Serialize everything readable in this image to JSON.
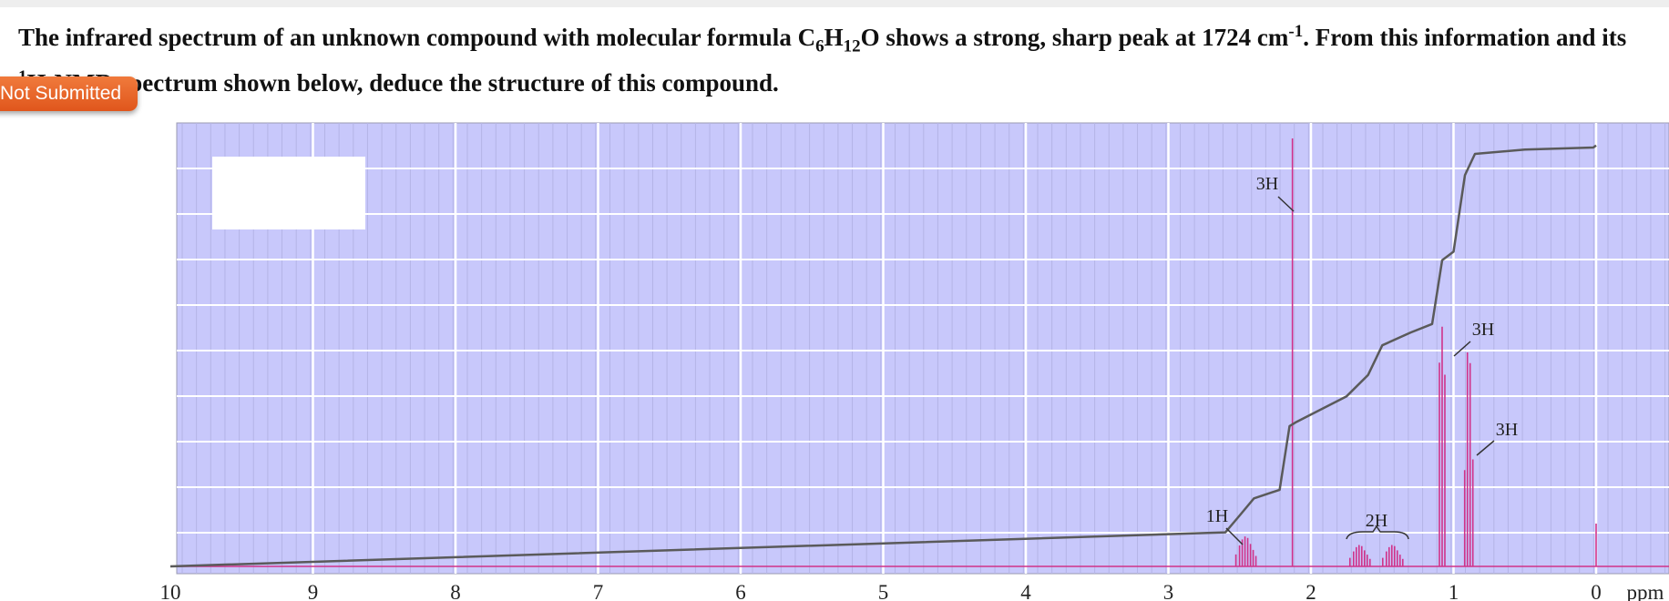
{
  "question": {
    "part1": "The infrared spectrum of an unknown compound with molecular formula C",
    "c_sub": "6",
    "h": "H",
    "h_sub": "12",
    "part2": "O shows a strong, sharp peak at 1724 cm",
    "cm_sup": "-1",
    "part3": ". From this information and its ",
    "nmr_sup": "1",
    "part4": "H-NMR spectrum shown below, deduce the structure of this compound."
  },
  "badge": {
    "label": "Not Submitted"
  },
  "colors": {
    "plot_background": "#c8c8fb",
    "grid": "#ffffff",
    "spectrum": "#d0328a",
    "integral": "#5a5a5a"
  },
  "chart_data": {
    "type": "line",
    "title": "",
    "xlabel": "ppm",
    "xlim": [
      10,
      0
    ],
    "x_reversed": true,
    "x_ticks": [
      "10",
      "9",
      "8",
      "7",
      "6",
      "5",
      "4",
      "3",
      "2",
      "1",
      "0"
    ],
    "series": [
      {
        "type": "spectrum",
        "peaks": [
          {
            "ppm": 2.45,
            "intensity": 0.07,
            "multiplet": "multiplet"
          },
          {
            "ppm": 2.13,
            "intensity": 1.0,
            "multiplet": "singlet"
          },
          {
            "ppm": 1.65,
            "intensity": 0.05,
            "multiplet": "multiplet"
          },
          {
            "ppm": 1.42,
            "intensity": 0.05,
            "multiplet": "multiplet"
          },
          {
            "ppm": 1.08,
            "intensity": 0.56,
            "multiplet": "doublet"
          },
          {
            "ppm": 0.89,
            "intensity": 0.5,
            "multiplet": "triplet"
          },
          {
            "ppm": 0.0,
            "intensity": 0.1,
            "multiplet": "singlet"
          }
        ]
      },
      {
        "type": "integral",
        "points": [
          [
            10.0,
            0.0
          ],
          [
            2.6,
            0.08
          ],
          [
            2.5,
            0.12
          ],
          [
            2.4,
            0.16
          ],
          [
            2.22,
            0.18
          ],
          [
            2.15,
            0.33
          ],
          [
            2.1,
            0.34
          ],
          [
            1.75,
            0.4
          ],
          [
            1.6,
            0.45
          ],
          [
            1.5,
            0.52
          ],
          [
            1.3,
            0.55
          ],
          [
            1.15,
            0.57
          ],
          [
            1.08,
            0.72
          ],
          [
            1.0,
            0.74
          ],
          [
            0.92,
            0.92
          ],
          [
            0.85,
            0.97
          ],
          [
            0.5,
            0.98
          ],
          [
            0.02,
            0.985
          ],
          [
            0.0,
            0.99
          ]
        ]
      }
    ],
    "annotations": [
      {
        "text": "3H",
        "ppm": 2.13
      },
      {
        "text": "1H",
        "ppm": 2.45
      },
      {
        "text": "2H",
        "ppm_range": [
          1.75,
          1.33
        ]
      },
      {
        "text": "3H",
        "ppm": 1.08
      },
      {
        "text": "3H",
        "ppm": 0.89
      }
    ]
  }
}
